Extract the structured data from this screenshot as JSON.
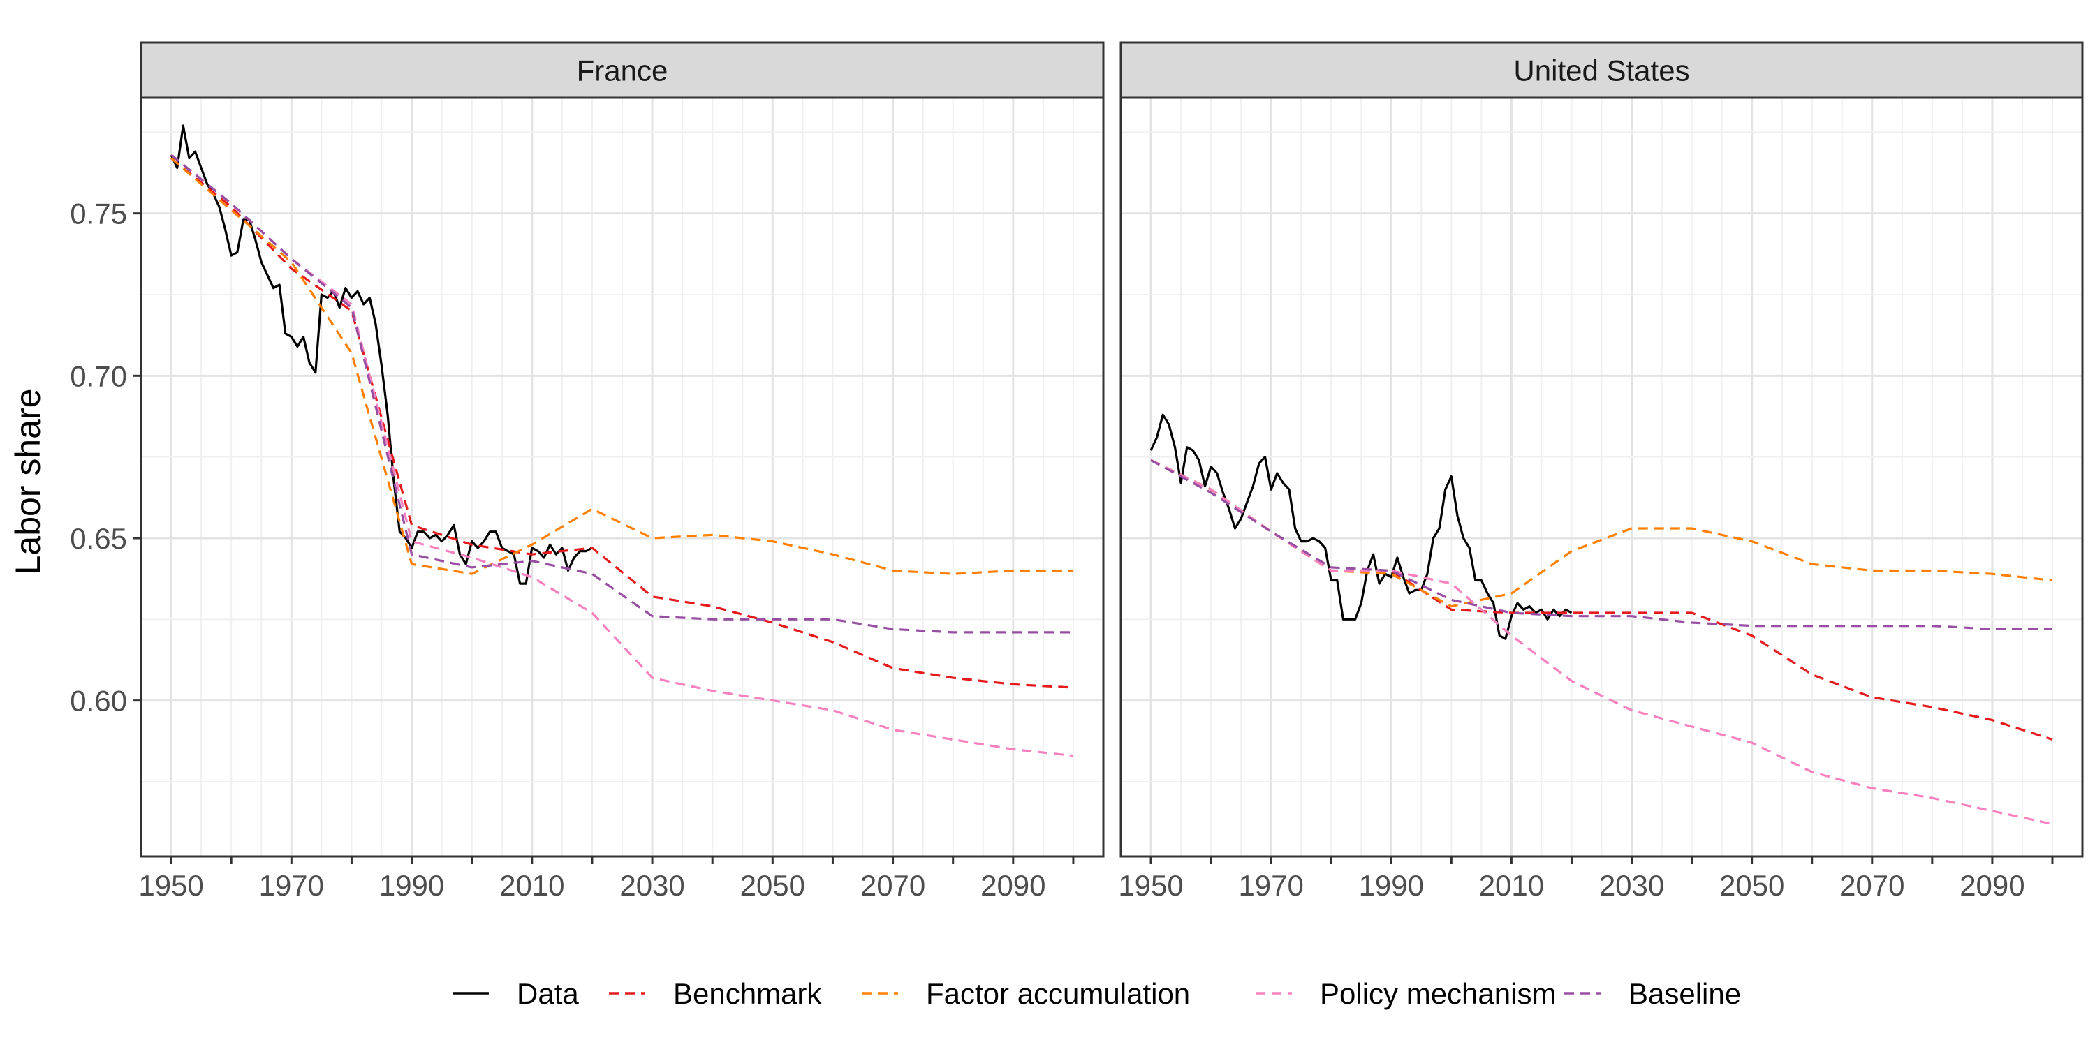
{
  "chart_data": {
    "type": "line",
    "ylabel": "Labor share",
    "xlabel": "",
    "xlim": [
      1945,
      2105
    ],
    "ylim": [
      0.552,
      0.7856
    ],
    "x_ticks": [
      1950,
      1970,
      1990,
      2010,
      2030,
      2050,
      2070,
      2090
    ],
    "y_ticks": [
      0.6,
      0.65,
      0.7,
      0.75
    ],
    "grid": true,
    "legend_position": "bottom",
    "legend": [
      {
        "name": "Data",
        "color": "#000000",
        "dash": "solid"
      },
      {
        "name": "Benchmark",
        "color": "#e41a1c",
        "dash": "dashed"
      },
      {
        "name": "Factor accumulation",
        "color": "#ff7f00",
        "dash": "dashed"
      },
      {
        "name": "Policy mechanism",
        "color": "#f781bf",
        "dash": "dashed"
      },
      {
        "name": "Baseline",
        "color": "#984ea3",
        "dash": "dashed"
      }
    ],
    "panels": [
      {
        "title": "France",
        "series": [
          {
            "name": "Data",
            "x": [
              1950,
              1951,
              1952,
              1953,
              1954,
              1955,
              1956,
              1957,
              1958,
              1959,
              1960,
              1961,
              1962,
              1963,
              1964,
              1965,
              1966,
              1967,
              1968,
              1969,
              1970,
              1971,
              1972,
              1973,
              1974,
              1975,
              1976,
              1977,
              1978,
              1979,
              1980,
              1981,
              1982,
              1983,
              1984,
              1985,
              1986,
              1987,
              1988,
              1989,
              1990,
              1991,
              1992,
              1993,
              1994,
              1995,
              1996,
              1997,
              1998,
              1999,
              2000,
              2001,
              2002,
              2003,
              2004,
              2005,
              2006,
              2007,
              2008,
              2009,
              2010,
              2011,
              2012,
              2013,
              2014,
              2015,
              2016,
              2017,
              2018,
              2019,
              2020
            ],
            "y": [
              0.768,
              0.764,
              0.777,
              0.767,
              0.769,
              0.764,
              0.759,
              0.756,
              0.752,
              0.745,
              0.737,
              0.738,
              0.748,
              0.748,
              0.742,
              0.735,
              0.731,
              0.727,
              0.728,
              0.713,
              0.712,
              0.709,
              0.712,
              0.704,
              0.701,
              0.725,
              0.724,
              0.726,
              0.721,
              0.727,
              0.724,
              0.726,
              0.722,
              0.724,
              0.716,
              0.703,
              0.688,
              0.668,
              0.652,
              0.65,
              0.647,
              0.652,
              0.652,
              0.65,
              0.651,
              0.649,
              0.651,
              0.654,
              0.645,
              0.642,
              0.649,
              0.647,
              0.649,
              0.652,
              0.652,
              0.647,
              0.646,
              0.645,
              0.636,
              0.636,
              0.647,
              0.646,
              0.644,
              0.648,
              0.645,
              0.647,
              0.64,
              0.644,
              0.646,
              0.646,
              0.647
            ]
          },
          {
            "name": "Benchmark",
            "x": [
              1950,
              1960,
              1970,
              1980,
              1990,
              2000,
              2010,
              2020,
              2030,
              2040,
              2050,
              2060,
              2070,
              2080,
              2090,
              2100
            ],
            "y": [
              0.767,
              0.752,
              0.733,
              0.72,
              0.654,
              0.648,
              0.645,
              0.647,
              0.632,
              0.629,
              0.624,
              0.618,
              0.61,
              0.607,
              0.605,
              0.604
            ]
          },
          {
            "name": "Factor accumulation",
            "x": [
              1950,
              1960,
              1970,
              1980,
              1990,
              2000,
              2010,
              2020,
              2030,
              2040,
              2050,
              2060,
              2070,
              2080,
              2090,
              2100
            ],
            "y": [
              0.767,
              0.751,
              0.735,
              0.707,
              0.642,
              0.639,
              0.648,
              0.659,
              0.65,
              0.651,
              0.649,
              0.645,
              0.64,
              0.639,
              0.64,
              0.64
            ]
          },
          {
            "name": "Policy mechanism",
            "x": [
              1950,
              1960,
              1970,
              1980,
              1990,
              2000,
              2010,
              2020,
              2030,
              2040,
              2050,
              2060,
              2070,
              2080,
              2090,
              2100
            ],
            "y": [
              0.768,
              0.753,
              0.736,
              0.722,
              0.649,
              0.644,
              0.638,
              0.627,
              0.607,
              0.603,
              0.6,
              0.597,
              0.591,
              0.588,
              0.585,
              0.583
            ]
          },
          {
            "name": "Baseline",
            "x": [
              1950,
              1960,
              1970,
              1980,
              1990,
              2000,
              2010,
              2020,
              2030,
              2040,
              2050,
              2060,
              2070,
              2080,
              2090,
              2100
            ],
            "y": [
              0.768,
              0.753,
              0.736,
              0.721,
              0.645,
              0.641,
              0.643,
              0.639,
              0.626,
              0.625,
              0.625,
              0.625,
              0.622,
              0.621,
              0.621,
              0.621
            ]
          }
        ]
      },
      {
        "title": "United States",
        "series": [
          {
            "name": "Data",
            "x": [
              1950,
              1951,
              1952,
              1953,
              1954,
              1955,
              1956,
              1957,
              1958,
              1959,
              1960,
              1961,
              1962,
              1963,
              1964,
              1965,
              1966,
              1967,
              1968,
              1969,
              1970,
              1971,
              1972,
              1973,
              1974,
              1975,
              1976,
              1977,
              1978,
              1979,
              1980,
              1981,
              1982,
              1983,
              1984,
              1985,
              1986,
              1987,
              1988,
              1989,
              1990,
              1991,
              1992,
              1993,
              1994,
              1995,
              1996,
              1997,
              1998,
              1999,
              2000,
              2001,
              2002,
              2003,
              2004,
              2005,
              2006,
              2007,
              2008,
              2009,
              2010,
              2011,
              2012,
              2013,
              2014,
              2015,
              2016,
              2017,
              2018,
              2019,
              2020
            ],
            "y": [
              0.677,
              0.681,
              0.688,
              0.685,
              0.678,
              0.667,
              0.678,
              0.677,
              0.674,
              0.666,
              0.672,
              0.67,
              0.664,
              0.659,
              0.653,
              0.656,
              0.661,
              0.666,
              0.673,
              0.675,
              0.665,
              0.67,
              0.667,
              0.665,
              0.653,
              0.649,
              0.649,
              0.65,
              0.649,
              0.647,
              0.637,
              0.637,
              0.625,
              0.625,
              0.625,
              0.63,
              0.64,
              0.645,
              0.636,
              0.639,
              0.638,
              0.644,
              0.638,
              0.633,
              0.634,
              0.634,
              0.639,
              0.65,
              0.653,
              0.665,
              0.669,
              0.657,
              0.65,
              0.647,
              0.637,
              0.637,
              0.633,
              0.63,
              0.62,
              0.619,
              0.626,
              0.63,
              0.628,
              0.629,
              0.627,
              0.628,
              0.625,
              0.628,
              0.626,
              0.628,
              0.627
            ]
          },
          {
            "name": "Benchmark",
            "x": [
              1950,
              1960,
              1970,
              1980,
              1990,
              2000,
              2010,
              2020,
              2030,
              2040,
              2050,
              2060,
              2070,
              2080,
              2090,
              2100
            ],
            "y": [
              0.674,
              0.665,
              0.652,
              0.64,
              0.64,
              0.628,
              0.627,
              0.627,
              0.627,
              0.627,
              0.62,
              0.608,
              0.601,
              0.598,
              0.594,
              0.588
            ]
          },
          {
            "name": "Factor accumulation",
            "x": [
              1950,
              1960,
              1970,
              1980,
              1990,
              2000,
              2010,
              2020,
              2030,
              2040,
              2050,
              2060,
              2070,
              2080,
              2090,
              2100
            ],
            "y": [
              0.674,
              0.665,
              0.652,
              0.64,
              0.639,
              0.629,
              0.633,
              0.646,
              0.653,
              0.653,
              0.649,
              0.642,
              0.64,
              0.64,
              0.639,
              0.637
            ]
          },
          {
            "name": "Policy mechanism",
            "x": [
              1950,
              1960,
              1970,
              1980,
              1990,
              2000,
              2010,
              2020,
              2030,
              2040,
              2050,
              2060,
              2070,
              2080,
              2090,
              2100
            ],
            "y": [
              0.674,
              0.665,
              0.652,
              0.64,
              0.64,
              0.636,
              0.62,
              0.606,
              0.597,
              0.592,
              0.587,
              0.578,
              0.573,
              0.57,
              0.566,
              0.562
            ]
          },
          {
            "name": "Baseline",
            "x": [
              1950,
              1960,
              1970,
              1980,
              1990,
              2000,
              2010,
              2020,
              2030,
              2040,
              2050,
              2060,
              2070,
              2080,
              2090,
              2100
            ],
            "y": [
              0.674,
              0.664,
              0.652,
              0.641,
              0.64,
              0.631,
              0.627,
              0.626,
              0.626,
              0.624,
              0.623,
              0.623,
              0.623,
              0.623,
              0.622,
              0.622
            ]
          }
        ]
      }
    ]
  }
}
